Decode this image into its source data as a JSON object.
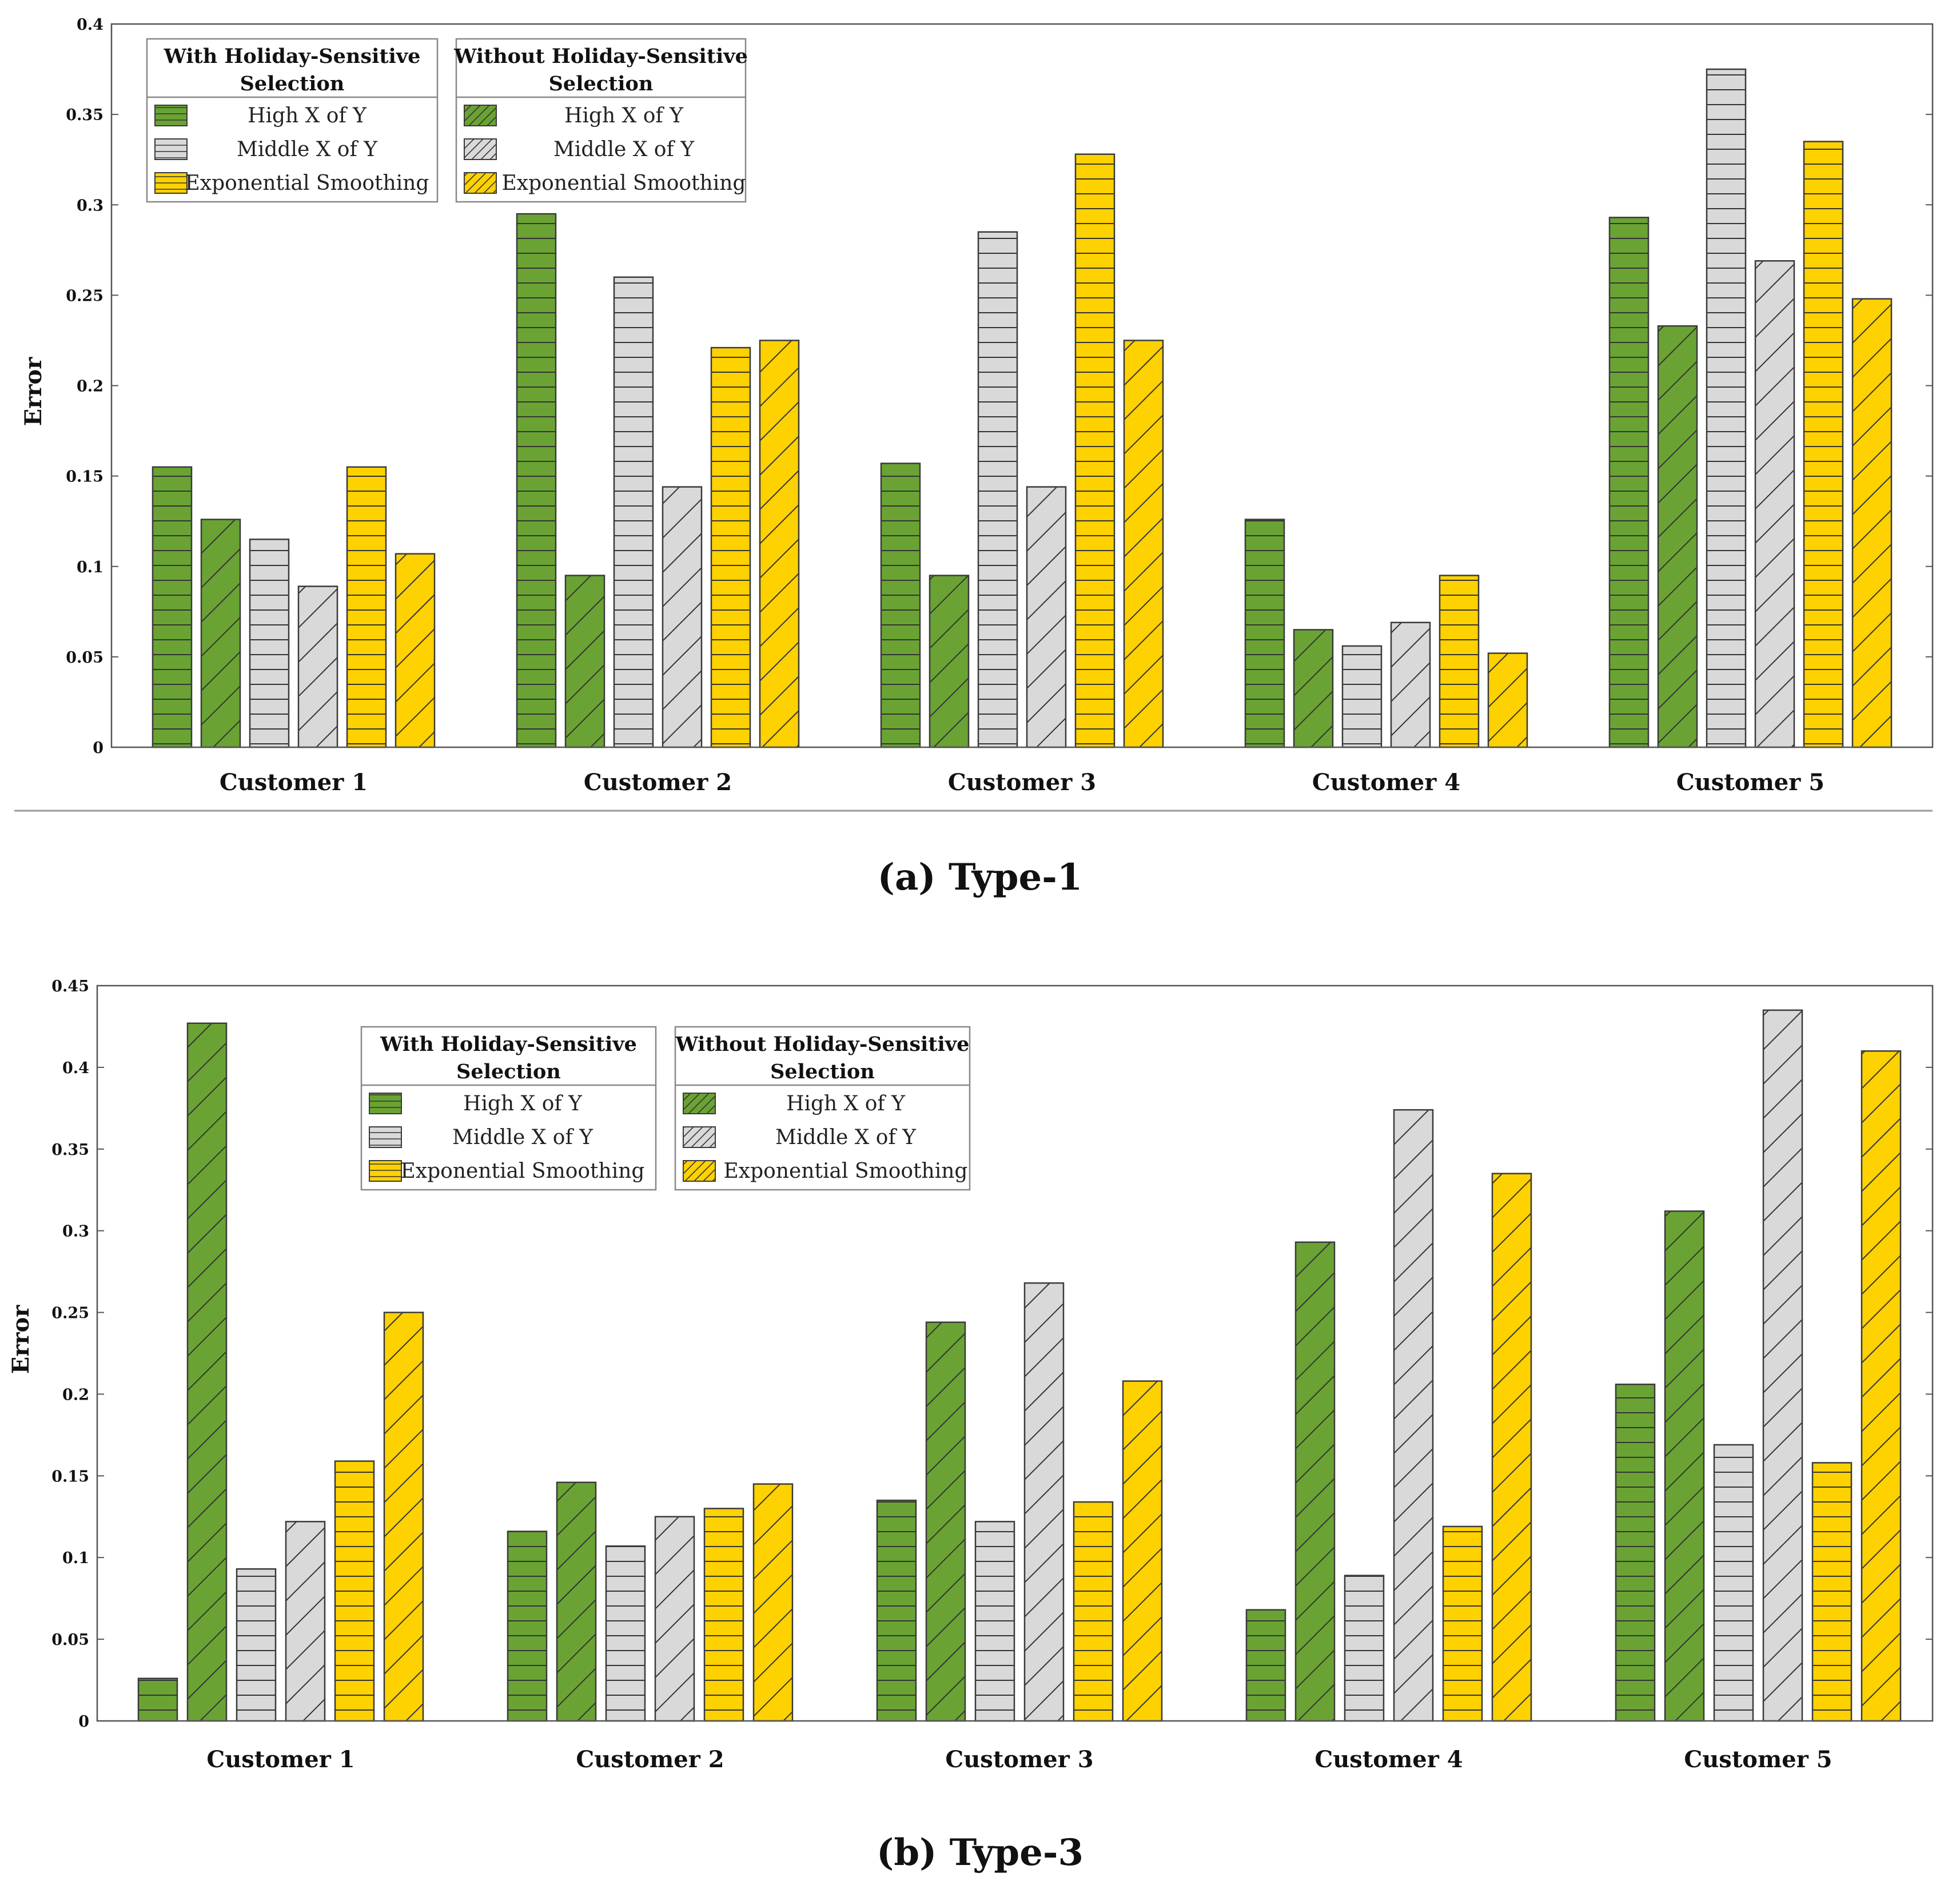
{
  "colors": {
    "green": "#6aa334",
    "gray": "#d9d9d9",
    "yellow": "#fed100",
    "edge": "#3a3a3a",
    "axis": "#555555",
    "hatch": "#333333"
  },
  "chart_data": [
    {
      "type": "bar",
      "caption": "(a) Type-1",
      "ylabel": "Error",
      "ylim": [
        0,
        0.4
      ],
      "yticks": [
        "0",
        "0.05",
        "0.1",
        "0.15",
        "0.2",
        "0.25",
        "0.3",
        "0.35",
        "0.4"
      ],
      "categories": [
        "Customer 1",
        "Customer 2",
        "Customer 3",
        "Customer 4",
        "Customer 5"
      ],
      "legend": {
        "groups": [
          {
            "title_line1": "With Holiday-Sensitive",
            "title_line2": "Selection",
            "entries": [
              "High X of Y",
              "Middle X of Y",
              "Exponential Smoothing"
            ]
          },
          {
            "title_line1": "Without Holiday-Sensitive",
            "title_line2": "Selection",
            "entries": [
              "High X of Y",
              "Middle X of Y",
              "Exponential Smoothing"
            ]
          }
        ],
        "placement": "top-left"
      },
      "series": [
        {
          "name": "High X of Y (With Holiday-Sensitive Selection)",
          "color": "green",
          "pattern": "horizontal",
          "values": [
            0.155,
            0.295,
            0.157,
            0.126,
            0.293
          ]
        },
        {
          "name": "High X of Y (Without Holiday-Sensitive Selection)",
          "color": "green",
          "pattern": "diagonal",
          "values": [
            0.126,
            0.095,
            0.095,
            0.065,
            0.233
          ]
        },
        {
          "name": "Middle X of Y (With Holiday-Sensitive Selection)",
          "color": "gray",
          "pattern": "horizontal",
          "values": [
            0.115,
            0.26,
            0.285,
            0.056,
            0.375
          ]
        },
        {
          "name": "Middle X of Y (Without Holiday-Sensitive Selection)",
          "color": "gray",
          "pattern": "diagonal",
          "values": [
            0.089,
            0.144,
            0.144,
            0.069,
            0.269
          ]
        },
        {
          "name": "Exponential Smoothing (With Holiday-Sensitive Selection)",
          "color": "yellow",
          "pattern": "horizontal",
          "values": [
            0.155,
            0.221,
            0.328,
            0.095,
            0.335
          ]
        },
        {
          "name": "Exponential Smoothing (Without Holiday-Sensitive Selection)",
          "color": "yellow",
          "pattern": "diagonal",
          "values": [
            0.107,
            0.225,
            0.225,
            0.052,
            0.248
          ]
        }
      ]
    },
    {
      "type": "bar",
      "caption": "(b) Type-3",
      "ylabel": "Error",
      "ylim": [
        0,
        0.45
      ],
      "yticks": [
        "0",
        "0.05",
        "0.1",
        "0.15",
        "0.2",
        "0.25",
        "0.3",
        "0.35",
        "0.4",
        "0.45"
      ],
      "categories": [
        "Customer 1",
        "Customer 2",
        "Customer 3",
        "Customer 4",
        "Customer 5"
      ],
      "legend": {
        "groups": [
          {
            "title_line1": "With Holiday-Sensitive",
            "title_line2": "Selection",
            "entries": [
              "High X of Y",
              "Middle X of Y",
              "Exponential Smoothing"
            ]
          },
          {
            "title_line1": "Without Holiday-Sensitive",
            "title_line2": "Selection",
            "entries": [
              "High X of Y",
              "Middle X of Y",
              "Exponential Smoothing"
            ]
          }
        ],
        "placement": "top-center"
      },
      "series": [
        {
          "name": "High X of Y (With Holiday-Sensitive Selection)",
          "color": "green",
          "pattern": "horizontal",
          "values": [
            0.026,
            0.116,
            0.135,
            0.068,
            0.206
          ]
        },
        {
          "name": "High X of Y (Without Holiday-Sensitive Selection)",
          "color": "green",
          "pattern": "diagonal",
          "values": [
            0.427,
            0.146,
            0.244,
            0.293,
            0.312
          ]
        },
        {
          "name": "Middle X of Y (With Holiday-Sensitive Selection)",
          "color": "gray",
          "pattern": "horizontal",
          "values": [
            0.093,
            0.107,
            0.122,
            0.089,
            0.169
          ]
        },
        {
          "name": "Middle X of Y (Without Holiday-Sensitive Selection)",
          "color": "gray",
          "pattern": "diagonal",
          "values": [
            0.122,
            0.125,
            0.268,
            0.374,
            0.435
          ]
        },
        {
          "name": "Exponential Smoothing (With Holiday-Sensitive Selection)",
          "color": "yellow",
          "pattern": "horizontal",
          "values": [
            0.159,
            0.13,
            0.134,
            0.119,
            0.158
          ]
        },
        {
          "name": "Exponential Smoothing (Without Holiday-Sensitive Selection)",
          "color": "yellow",
          "pattern": "diagonal",
          "values": [
            0.25,
            0.145,
            0.208,
            0.335,
            0.41
          ]
        }
      ]
    }
  ]
}
